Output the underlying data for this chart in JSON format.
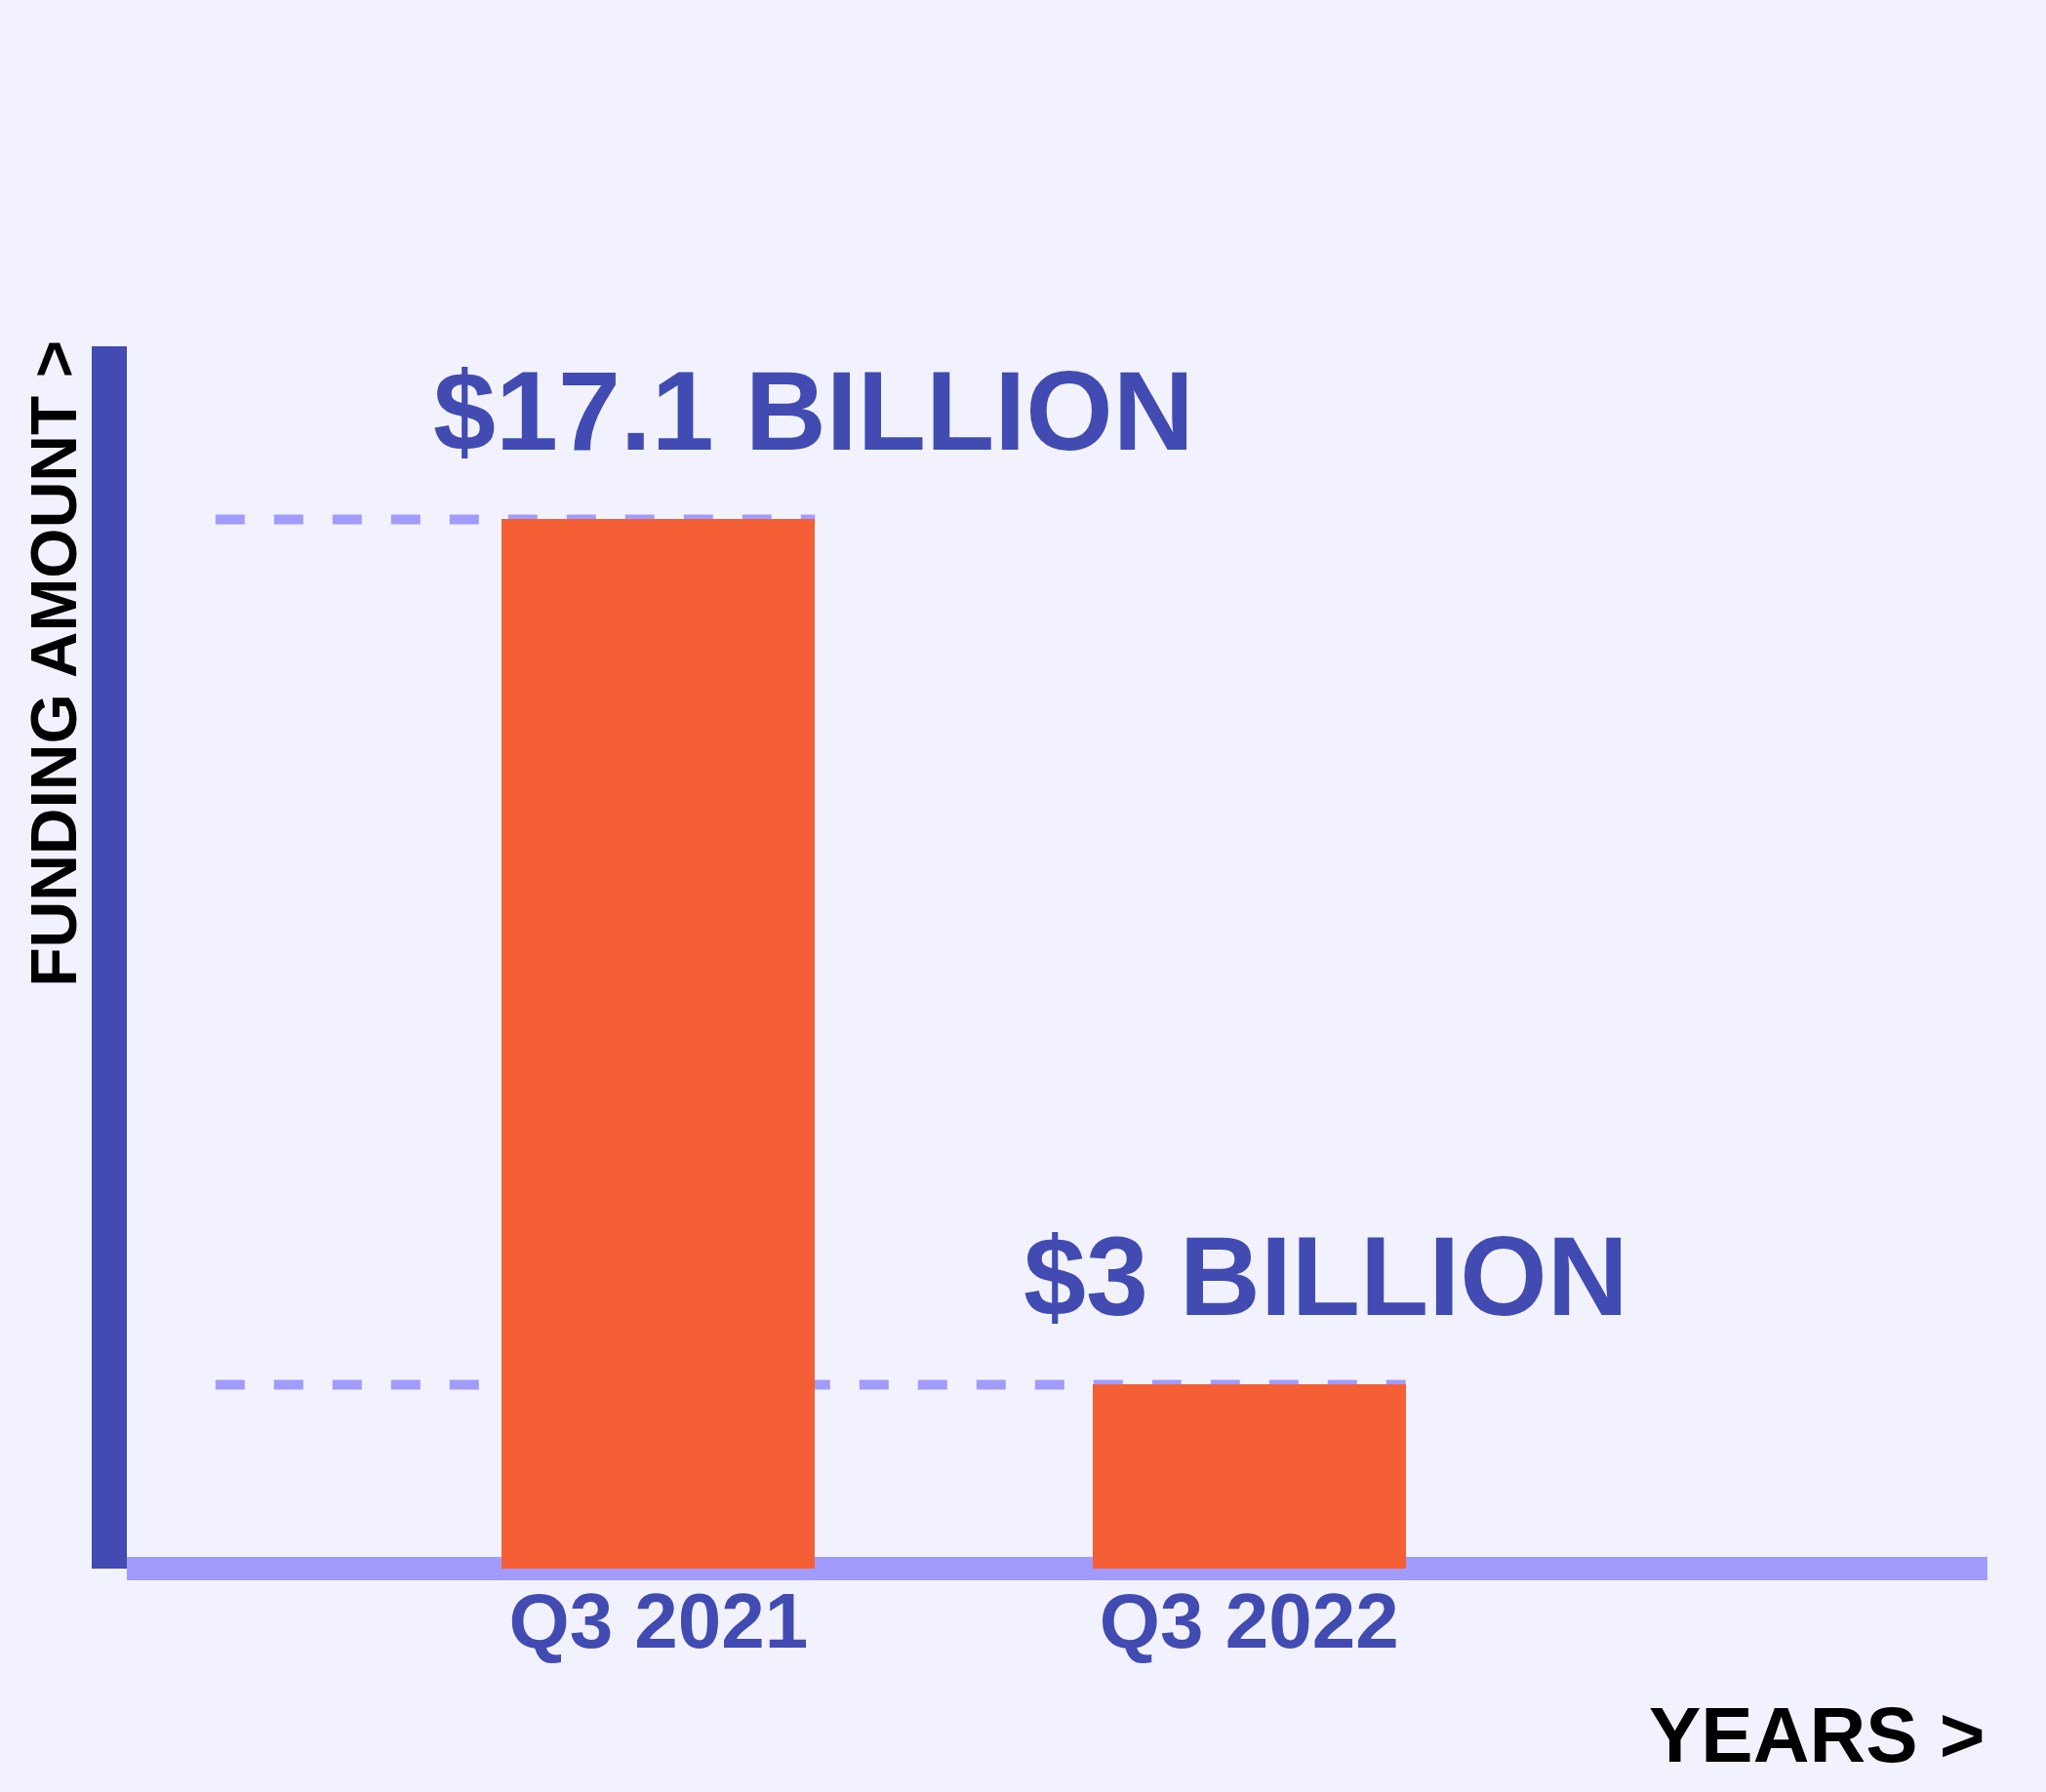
{
  "chart_data": {
    "type": "bar",
    "categories": [
      "Q3 2021",
      "Q3 2022"
    ],
    "values": [
      17.1,
      3
    ],
    "value_labels": [
      "$17.1 BILLION",
      "$3 BILLION"
    ],
    "color": "#f55f36",
    "xlabel": "YEARS >",
    "ylabel": "FUNDING AMOUNT >",
    "ref_lines": [
      {
        "axis": "y",
        "value": 17.1,
        "color": "#a29bfe",
        "line_style": "dashed"
      },
      {
        "axis": "y",
        "value": 3,
        "color": "#a29bfe",
        "line_style": "dashed"
      }
    ],
    "tick_labels": "x",
    "legend": false
  }
}
